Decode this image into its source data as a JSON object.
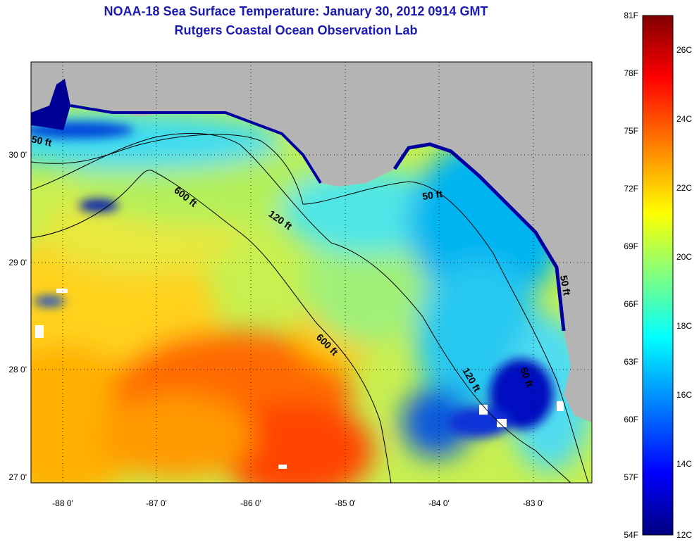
{
  "title": "NOAA-18 Sea Surface Temperature:  January 30, 2012 0914 GMT",
  "subtitle": "Rutgers Coastal Ocean Observation Lab",
  "map": {
    "lon_labels": [
      "-88 0'",
      "-87 0'",
      "-86 0'",
      "-85 0'",
      "-84 0'",
      "-83 0'"
    ],
    "lat_labels": [
      "30 0'",
      "29 0'",
      "28 0'",
      "27 0'"
    ],
    "contour_labels": [
      "50 ft",
      "600 ft",
      "120 ft",
      "50 ft",
      "600 ft",
      "120 ft",
      "50 ft",
      "50 ft"
    ],
    "colors": {
      "land": "#b4b4b4",
      "cold": "#00008c",
      "cool": "#00c8ff",
      "mid": "#b4ff50",
      "warm": "#ffd200",
      "hot": "#ff4a00"
    }
  },
  "colorbar": {
    "f_labels": [
      "81F",
      "78F",
      "75F",
      "72F",
      "69F",
      "66F",
      "63F",
      "60F",
      "57F",
      "54F"
    ],
    "c_labels": [
      "26C",
      "24C",
      "22C",
      "20C",
      "18C",
      "16C",
      "14C",
      "12C"
    ]
  }
}
